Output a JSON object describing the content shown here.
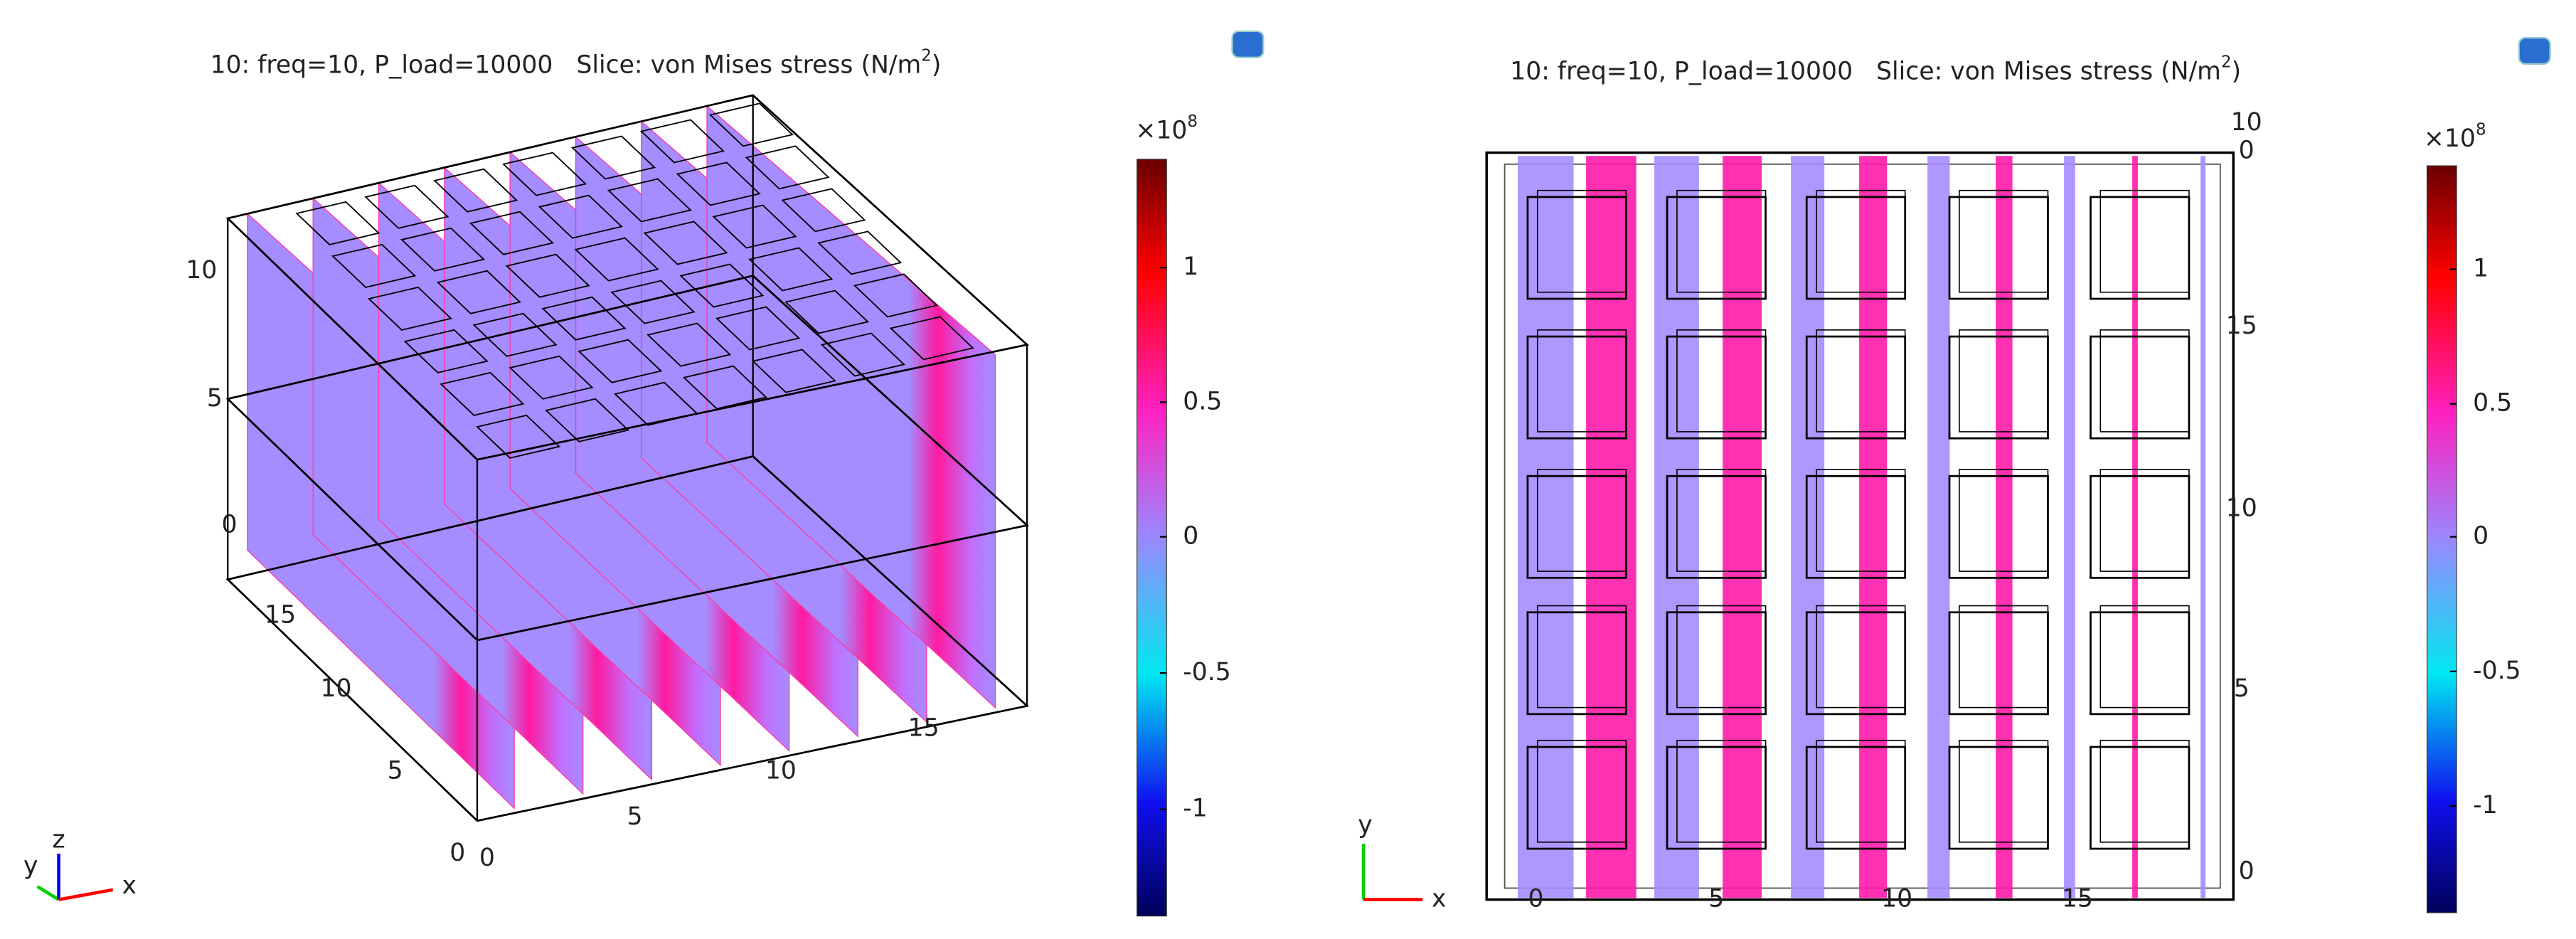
{
  "panels": [
    {
      "title": {
        "text": "10: freq=10, P_load=10000   Slice: von Mises stress (N/m",
        "sup": "2",
        "end": ")"
      },
      "colorbar": {
        "multiplier": "×10",
        "exponent": "8",
        "ticks": [
          1,
          0.5,
          0,
          -0.5,
          -1
        ]
      },
      "axes": {
        "z": [
          10,
          5,
          0
        ],
        "y": [
          15,
          10,
          5,
          0
        ],
        "x": [
          0,
          5,
          10,
          15
        ]
      },
      "triad": [
        "y",
        "z",
        "x"
      ]
    },
    {
      "title": {
        "text": "10: freq=10, P_load=10000   Slice: von Mises stress (N/m",
        "sup": "2",
        "end": ")"
      },
      "colorbar": {
        "multiplier": "×10",
        "exponent": "8",
        "ticks": [
          1,
          0.5,
          0,
          -0.5,
          -1
        ]
      },
      "axes": {
        "top": [
          10,
          0
        ],
        "y": [
          15,
          10,
          5,
          0
        ],
        "x": [
          0,
          5,
          10,
          15
        ]
      },
      "triad": [
        "y",
        "x"
      ]
    }
  ]
}
